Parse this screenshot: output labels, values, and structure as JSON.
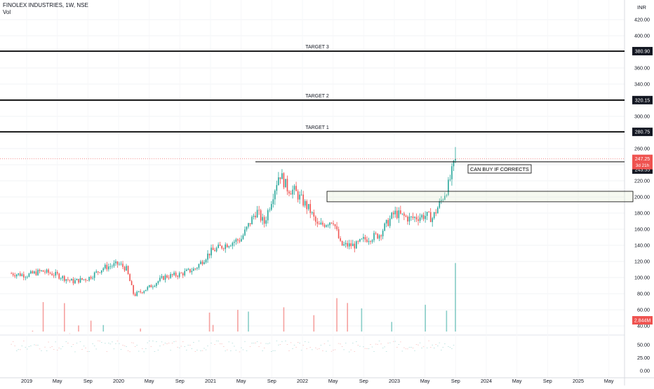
{
  "header": {
    "title": "FINOLEX INDUSTRIES, 1W, NSE",
    "volume_label": "Vol"
  },
  "chart_data": {
    "type": "candlestick",
    "currency": "INR",
    "price_axis": {
      "range": [
        0,
        430
      ],
      "ticks": [
        420,
        400,
        380,
        360,
        340,
        320,
        300,
        280,
        260,
        240,
        220,
        200,
        180,
        160,
        140,
        120,
        100,
        80,
        60,
        40
      ],
      "tick_labels": [
        "420.00",
        "400.00",
        "380.00",
        "360.00",
        "340.00",
        "320.00",
        "300.00",
        "280.00",
        "260.00",
        "240.00",
        "220.00",
        "200.00",
        "180.00",
        "160.00",
        "140.00",
        "120.00",
        "100.00",
        "80.00",
        "60.00",
        "40.00"
      ]
    },
    "volume_axis": {
      "ticks": [
        50,
        25,
        0
      ],
      "tick_labels": [
        "50.00",
        "25.00",
        "0.00"
      ]
    },
    "time_axis": {
      "labels": [
        "2019",
        "May",
        "Sep",
        "2020",
        "May",
        "Sep",
        "2021",
        "May",
        "Sep",
        "2022",
        "May",
        "Sep",
        "2023",
        "May",
        "Sep",
        "2024",
        "May",
        "Sep",
        "2025",
        "May"
      ]
    },
    "horizontal_levels": [
      {
        "label": "TARGET 3",
        "value": 380.9,
        "value_label": "380.90"
      },
      {
        "label": "TARGET 2",
        "value": 320.15,
        "value_label": "320.15"
      },
      {
        "label": "TARGET 1",
        "value": 280.75,
        "value_label": "280.75"
      }
    ],
    "resistance_line": {
      "value": 243.55,
      "value_label": "243.55"
    },
    "last_price": {
      "value": 247.25,
      "value_label": "247.25",
      "countdown": "3d 21h"
    },
    "volume_last": {
      "value_label": "2.844M"
    },
    "demand_zone": {
      "top": 207,
      "bottom": 194,
      "annotation": "CAN BUY IF CORRECTS"
    },
    "series": [
      {
        "name": "Close",
        "anchors_date_value": [
          [
            "2018-11",
            105
          ],
          [
            "2019-01",
            103
          ],
          [
            "2019-03",
            108
          ],
          [
            "2019-05",
            103
          ],
          [
            "2019-07",
            95
          ],
          [
            "2019-09",
            99
          ],
          [
            "2019-11",
            112
          ],
          [
            "2020-01",
            117
          ],
          [
            "2020-02",
            111
          ],
          [
            "2020-03",
            78
          ],
          [
            "2020-05",
            88
          ],
          [
            "2020-07",
            101
          ],
          [
            "2020-09",
            104
          ],
          [
            "2020-11",
            111
          ],
          [
            "2021-01",
            132
          ],
          [
            "2021-03",
            141
          ],
          [
            "2021-05",
            148
          ],
          [
            "2021-07",
            183
          ],
          [
            "2021-08",
            167
          ],
          [
            "2021-10",
            230
          ],
          [
            "2021-11",
            211
          ],
          [
            "2021-12",
            207
          ],
          [
            "2022-02",
            183
          ],
          [
            "2022-03",
            163
          ],
          [
            "2022-05",
            172
          ],
          [
            "2022-06",
            140
          ],
          [
            "2022-08",
            140
          ],
          [
            "2022-09",
            147
          ],
          [
            "2022-11",
            153
          ],
          [
            "2023-01",
            180
          ],
          [
            "2023-03",
            173
          ],
          [
            "2023-05",
            177
          ],
          [
            "2023-06",
            174
          ],
          [
            "2023-08",
            213
          ],
          [
            "2023-09",
            247
          ]
        ]
      }
    ]
  }
}
